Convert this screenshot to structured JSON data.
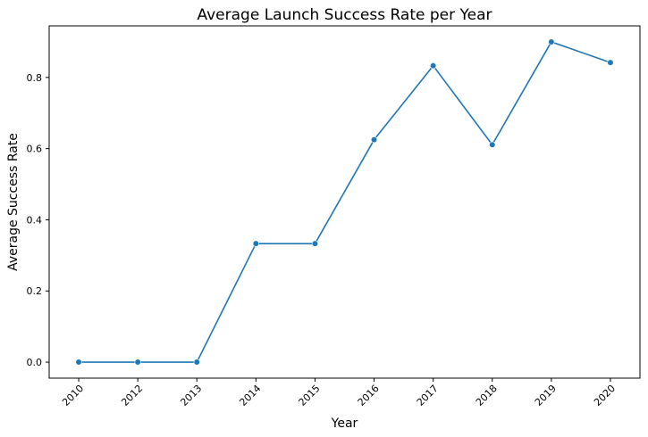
{
  "chart_data": {
    "type": "line",
    "title": "Average Launch Success Rate per Year",
    "xlabel": "Year",
    "ylabel": "Average Success Rate",
    "x": [
      "2010",
      "2012",
      "2013",
      "2014",
      "2015",
      "2016",
      "2017",
      "2018",
      "2019",
      "2020"
    ],
    "series": [
      {
        "values": [
          0.0,
          0.0,
          0.0,
          0.333,
          0.333,
          0.625,
          0.833,
          0.611,
          0.9,
          0.842
        ]
      }
    ],
    "yticks": [
      {
        "value": 0.0,
        "label": "0.0"
      },
      {
        "value": 0.2,
        "label": "0.2"
      },
      {
        "value": 0.4,
        "label": "0.4"
      },
      {
        "value": 0.6,
        "label": "0.6"
      },
      {
        "value": 0.8,
        "label": "0.8"
      }
    ],
    "ylim": [
      -0.045,
      0.945
    ],
    "grid": false,
    "line_color": "#1f77b4",
    "marker": "circle"
  }
}
